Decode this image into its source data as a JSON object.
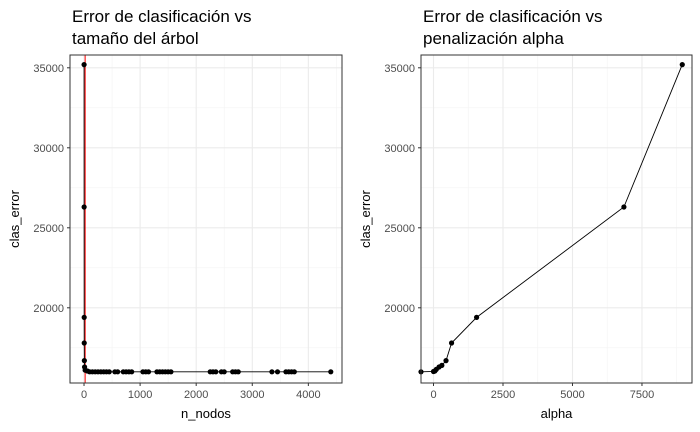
{
  "chart_data": [
    {
      "type": "line",
      "title_lines": [
        "Error de clasificación vs",
        "tamaño del árbol"
      ],
      "xlabel": "n_nodos",
      "ylabel": "clas_error",
      "xlim": [
        -250,
        4600
      ],
      "ylim": [
        15300,
        35800
      ],
      "x_ticks": [
        0,
        1000,
        2000,
        3000,
        4000
      ],
      "y_ticks": [
        20000,
        25000,
        30000,
        35000
      ],
      "grid": true,
      "vline": {
        "x": 20,
        "color": "#ff0000"
      },
      "points": [
        {
          "x": 1,
          "y": 35200
        },
        {
          "x": 2,
          "y": 26300
        },
        {
          "x": 3,
          "y": 19400
        },
        {
          "x": 4,
          "y": 17800
        },
        {
          "x": 6,
          "y": 16700
        },
        {
          "x": 10,
          "y": 16300
        },
        {
          "x": 20,
          "y": 16100
        },
        {
          "x": 60,
          "y": 16050
        },
        {
          "x": 100,
          "y": 16000
        },
        {
          "x": 150,
          "y": 16000
        },
        {
          "x": 200,
          "y": 16000
        },
        {
          "x": 250,
          "y": 16000
        },
        {
          "x": 300,
          "y": 16000
        },
        {
          "x": 350,
          "y": 16000
        },
        {
          "x": 400,
          "y": 16000
        },
        {
          "x": 450,
          "y": 16000
        },
        {
          "x": 550,
          "y": 16000
        },
        {
          "x": 600,
          "y": 16000
        },
        {
          "x": 700,
          "y": 16000
        },
        {
          "x": 750,
          "y": 16000
        },
        {
          "x": 800,
          "y": 16000
        },
        {
          "x": 850,
          "y": 16000
        },
        {
          "x": 1050,
          "y": 16000
        },
        {
          "x": 1100,
          "y": 16000
        },
        {
          "x": 1150,
          "y": 16000
        },
        {
          "x": 1300,
          "y": 16000
        },
        {
          "x": 1350,
          "y": 16000
        },
        {
          "x": 1400,
          "y": 16000
        },
        {
          "x": 1450,
          "y": 16000
        },
        {
          "x": 1500,
          "y": 16000
        },
        {
          "x": 1550,
          "y": 16000
        },
        {
          "x": 2250,
          "y": 16000
        },
        {
          "x": 2300,
          "y": 16000
        },
        {
          "x": 2350,
          "y": 16000
        },
        {
          "x": 2450,
          "y": 16000
        },
        {
          "x": 2500,
          "y": 16000
        },
        {
          "x": 2650,
          "y": 16000
        },
        {
          "x": 2700,
          "y": 16000
        },
        {
          "x": 2750,
          "y": 16000
        },
        {
          "x": 3350,
          "y": 16000
        },
        {
          "x": 3450,
          "y": 16000
        },
        {
          "x": 3600,
          "y": 16000
        },
        {
          "x": 3650,
          "y": 16000
        },
        {
          "x": 3700,
          "y": 16000
        },
        {
          "x": 3750,
          "y": 16000
        },
        {
          "x": 4400,
          "y": 16000
        }
      ]
    },
    {
      "type": "line",
      "title_lines": [
        "Error de clasificación vs",
        "penalización alpha"
      ],
      "xlabel": "alpha",
      "ylabel": "clas_error",
      "xlim": [
        -450,
        9300
      ],
      "ylim": [
        15300,
        35800
      ],
      "x_ticks": [
        0,
        2500,
        5000,
        7500
      ],
      "y_ticks": [
        20000,
        25000,
        30000,
        35000
      ],
      "grid": true,
      "points": [
        {
          "x": -450,
          "y": 16000
        },
        {
          "x": 0,
          "y": 16020
        },
        {
          "x": 50,
          "y": 16050
        },
        {
          "x": 100,
          "y": 16150
        },
        {
          "x": 200,
          "y": 16300
        },
        {
          "x": 300,
          "y": 16400
        },
        {
          "x": 450,
          "y": 16700
        },
        {
          "x": 650,
          "y": 17800
        },
        {
          "x": 1550,
          "y": 19400
        },
        {
          "x": 6850,
          "y": 26300
        },
        {
          "x": 8950,
          "y": 35200
        }
      ]
    }
  ]
}
